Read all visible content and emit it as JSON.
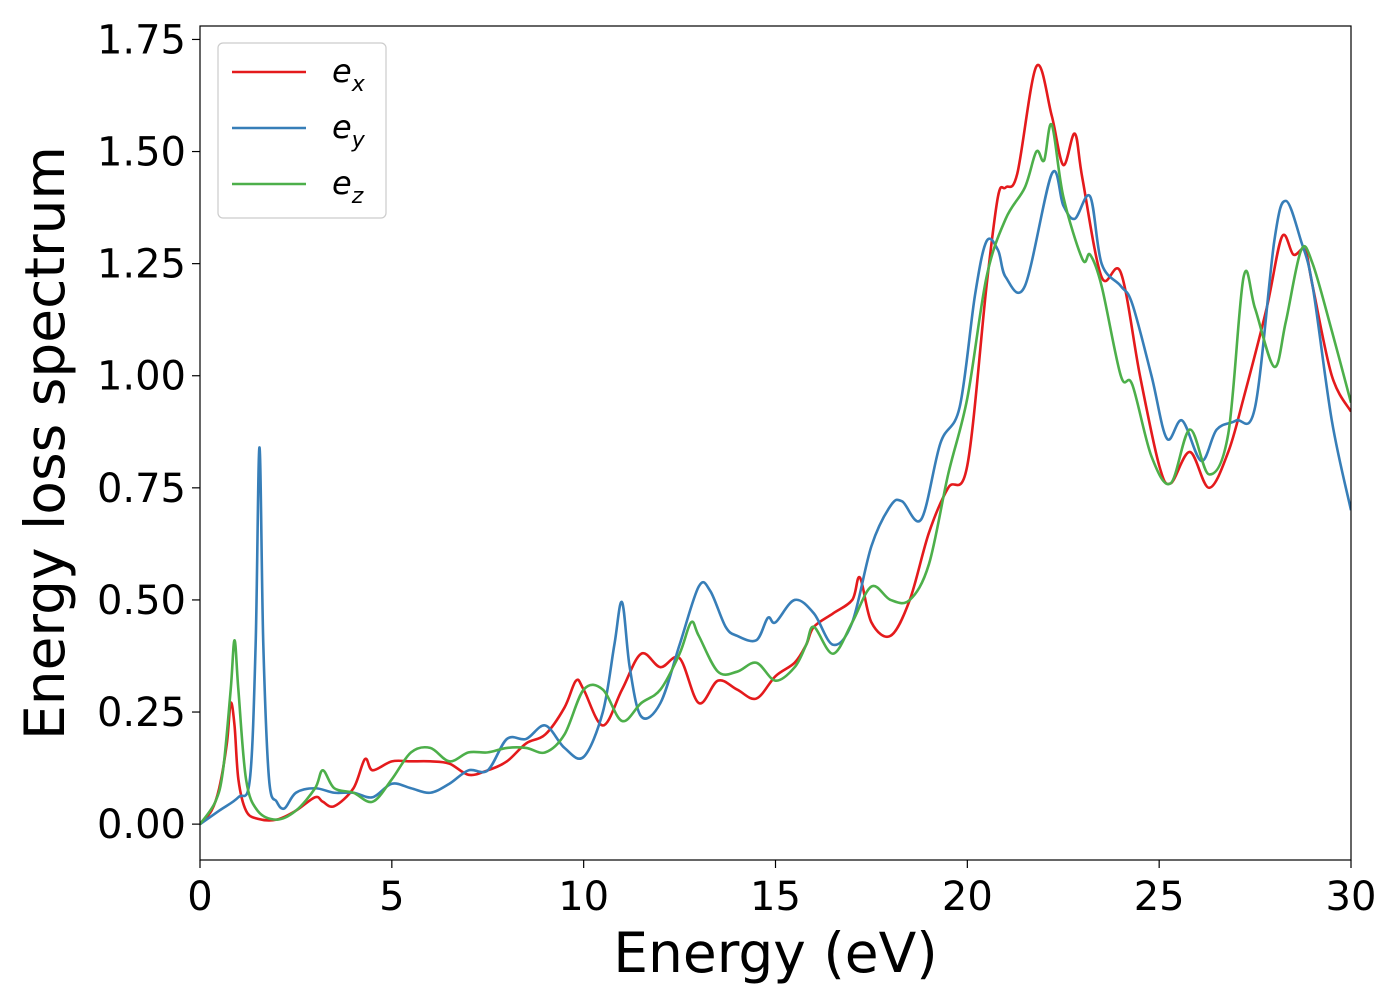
{
  "chart_data": {
    "type": "line",
    "title": "",
    "xlabel": "Energy (eV)",
    "ylabel": "Energy loss spectrum",
    "xlim": [
      0,
      30
    ],
    "ylim": [
      -0.08,
      1.78
    ],
    "xticks": [
      0,
      5,
      10,
      15,
      20,
      25,
      30
    ],
    "xtick_labels": [
      "0",
      "5",
      "10",
      "15",
      "20",
      "25",
      "30"
    ],
    "yticks": [
      0.0,
      0.25,
      0.5,
      0.75,
      1.0,
      1.25,
      1.5,
      1.75
    ],
    "ytick_labels": [
      "0.00",
      "0.25",
      "0.50",
      "0.75",
      "1.00",
      "1.25",
      "1.50",
      "1.75"
    ],
    "grid": false,
    "legend": "top-left",
    "series": [
      {
        "name": "e",
        "sub": "x",
        "color": "#e41a1c",
        "x": [
          0,
          0.3,
          0.5,
          0.7,
          0.8,
          0.9,
          1.0,
          1.2,
          1.5,
          2.0,
          2.5,
          3.0,
          3.2,
          3.5,
          4.0,
          4.3,
          4.5,
          5.0,
          5.5,
          6.0,
          6.5,
          7.0,
          7.5,
          8.0,
          8.5,
          9.0,
          9.5,
          9.8,
          10.0,
          10.5,
          11.0,
          11.5,
          12.0,
          12.5,
          13.0,
          13.5,
          14.0,
          14.5,
          15.0,
          15.5,
          15.8,
          16.0,
          16.5,
          17.0,
          17.2,
          17.5,
          18.0,
          18.5,
          19.0,
          19.5,
          20.0,
          20.5,
          20.8,
          21.0,
          21.3,
          21.8,
          22.2,
          22.5,
          22.8,
          23.0,
          23.5,
          24.0,
          24.5,
          25.0,
          25.3,
          25.8,
          26.3,
          26.8,
          27.2,
          27.8,
          28.2,
          28.5,
          28.8,
          29.0,
          29.5,
          30.0
        ],
        "y": [
          0,
          0.03,
          0.08,
          0.18,
          0.27,
          0.22,
          0.1,
          0.03,
          0.012,
          0.01,
          0.03,
          0.06,
          0.05,
          0.04,
          0.08,
          0.145,
          0.12,
          0.14,
          0.14,
          0.14,
          0.135,
          0.11,
          0.12,
          0.14,
          0.18,
          0.2,
          0.26,
          0.32,
          0.3,
          0.22,
          0.3,
          0.38,
          0.35,
          0.37,
          0.27,
          0.32,
          0.3,
          0.28,
          0.33,
          0.36,
          0.4,
          0.44,
          0.47,
          0.5,
          0.55,
          0.45,
          0.42,
          0.5,
          0.65,
          0.75,
          0.8,
          1.2,
          1.4,
          1.42,
          1.45,
          1.69,
          1.58,
          1.47,
          1.54,
          1.44,
          1.22,
          1.23,
          1.0,
          0.8,
          0.76,
          0.83,
          0.75,
          0.83,
          0.95,
          1.15,
          1.31,
          1.27,
          1.28,
          1.2,
          1.0,
          0.92
        ]
      },
      {
        "name": "e",
        "sub": "y",
        "color": "#377eb8",
        "x": [
          0,
          0.5,
          1.0,
          1.3,
          1.45,
          1.55,
          1.65,
          1.8,
          2.0,
          2.2,
          2.5,
          3.0,
          3.5,
          4.0,
          4.5,
          5.0,
          5.5,
          6.0,
          6.5,
          7.0,
          7.5,
          8.0,
          8.5,
          9.0,
          9.5,
          10.0,
          10.5,
          10.8,
          11.0,
          11.2,
          11.5,
          12.0,
          12.5,
          13.0,
          13.3,
          13.7,
          14.0,
          14.5,
          14.8,
          15.0,
          15.5,
          16.0,
          16.5,
          17.0,
          17.5,
          18.0,
          18.3,
          18.8,
          19.3,
          19.8,
          20.2,
          20.5,
          20.8,
          21.0,
          21.5,
          22.2,
          22.5,
          22.8,
          23.2,
          23.5,
          24.0,
          24.3,
          24.8,
          25.2,
          25.6,
          26.1,
          26.5,
          27.0,
          27.5,
          28.0,
          28.3,
          28.7,
          29.0,
          29.5,
          30.0
        ],
        "y": [
          0,
          0.03,
          0.06,
          0.1,
          0.4,
          0.84,
          0.4,
          0.1,
          0.05,
          0.035,
          0.07,
          0.08,
          0.07,
          0.07,
          0.06,
          0.09,
          0.08,
          0.07,
          0.09,
          0.12,
          0.12,
          0.19,
          0.19,
          0.22,
          0.17,
          0.15,
          0.25,
          0.4,
          0.495,
          0.35,
          0.24,
          0.27,
          0.4,
          0.53,
          0.52,
          0.44,
          0.42,
          0.41,
          0.46,
          0.45,
          0.5,
          0.47,
          0.4,
          0.45,
          0.62,
          0.71,
          0.72,
          0.68,
          0.85,
          0.93,
          1.18,
          1.3,
          1.28,
          1.22,
          1.2,
          1.45,
          1.38,
          1.35,
          1.4,
          1.25,
          1.2,
          1.16,
          1.0,
          0.86,
          0.9,
          0.81,
          0.88,
          0.9,
          0.93,
          1.3,
          1.39,
          1.3,
          1.2,
          0.9,
          0.7
        ]
      },
      {
        "name": "e",
        "sub": "z",
        "color": "#4daf4a",
        "x": [
          0,
          0.4,
          0.6,
          0.8,
          0.9,
          1.0,
          1.2,
          1.5,
          2.0,
          2.5,
          3.0,
          3.2,
          3.5,
          4.0,
          4.5,
          5.0,
          5.5,
          6.0,
          6.5,
          7.0,
          7.5,
          8.0,
          8.5,
          9.0,
          9.5,
          10.0,
          10.5,
          11.0,
          11.5,
          12.0,
          12.5,
          12.8,
          13.0,
          13.5,
          14.0,
          14.5,
          15.0,
          15.5,
          15.8,
          16.0,
          16.5,
          17.0,
          17.5,
          18.0,
          18.5,
          19.0,
          19.5,
          20.0,
          20.5,
          21.0,
          21.5,
          21.8,
          22.0,
          22.2,
          22.5,
          23.0,
          23.2,
          23.5,
          24.0,
          24.3,
          24.8,
          25.3,
          25.8,
          26.3,
          26.8,
          27.2,
          27.5,
          28.0,
          28.3,
          28.7,
          29.0,
          29.5,
          30.0
        ],
        "y": [
          0,
          0.05,
          0.12,
          0.3,
          0.41,
          0.3,
          0.1,
          0.03,
          0.01,
          0.03,
          0.08,
          0.12,
          0.08,
          0.07,
          0.05,
          0.1,
          0.16,
          0.17,
          0.14,
          0.16,
          0.16,
          0.17,
          0.17,
          0.16,
          0.2,
          0.3,
          0.3,
          0.23,
          0.27,
          0.3,
          0.38,
          0.45,
          0.42,
          0.34,
          0.34,
          0.36,
          0.32,
          0.35,
          0.4,
          0.44,
          0.38,
          0.45,
          0.53,
          0.5,
          0.5,
          0.58,
          0.78,
          0.95,
          1.22,
          1.35,
          1.42,
          1.5,
          1.48,
          1.56,
          1.4,
          1.26,
          1.27,
          1.2,
          1.0,
          0.98,
          0.82,
          0.76,
          0.88,
          0.78,
          0.87,
          1.22,
          1.15,
          1.02,
          1.12,
          1.28,
          1.25,
          1.1,
          0.94
        ]
      }
    ]
  }
}
